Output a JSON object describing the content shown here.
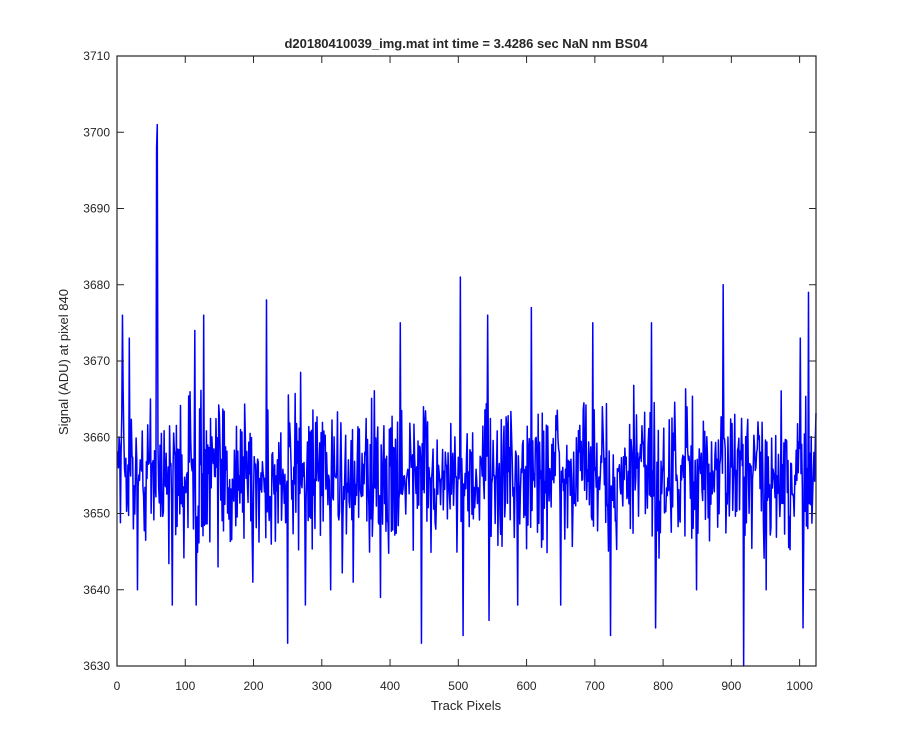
{
  "chart_data": {
    "type": "line",
    "title": "d20180410039_img.mat int time = 3.4286 sec  NaN nm BS04",
    "xlabel": "Track Pixels",
    "ylabel": "Signal (ADU) at pixel 840",
    "xlim": [
      0,
      1024
    ],
    "ylim": [
      3630,
      3710
    ],
    "xticks": [
      0,
      100,
      200,
      300,
      400,
      500,
      600,
      700,
      800,
      900,
      1000
    ],
    "yticks": [
      3630,
      3640,
      3650,
      3660,
      3670,
      3680,
      3690,
      3700,
      3710
    ],
    "grid": false,
    "legend": "none",
    "series": [
      {
        "color": "#0000ff",
        "noise_mean": 3655,
        "noise_range": [
          3633,
          3681
        ],
        "n_points": 1024,
        "peaks": [
          {
            "x": 1,
            "y": 3656
          },
          {
            "x": 7,
            "y": 3676
          },
          {
            "x": 17,
            "y": 3673
          },
          {
            "x": 29,
            "y": 3640
          },
          {
            "x": 57,
            "y": 3698
          },
          {
            "x": 58,
            "y": 3701
          },
          {
            "x": 59,
            "y": 3659
          },
          {
            "x": 80,
            "y": 3638
          },
          {
            "x": 113,
            "y": 3674
          },
          {
            "x": 115,
            "y": 3638
          },
          {
            "x": 126,
            "y": 3676
          },
          {
            "x": 147,
            "y": 3643
          },
          {
            "x": 198,
            "y": 3641
          },
          {
            "x": 218,
            "y": 3678
          },
          {
            "x": 249,
            "y": 3633
          },
          {
            "x": 275,
            "y": 3638
          },
          {
            "x": 312,
            "y": 3640
          },
          {
            "x": 345,
            "y": 3641
          },
          {
            "x": 385,
            "y": 3639
          },
          {
            "x": 414,
            "y": 3675
          },
          {
            "x": 445,
            "y": 3633
          },
          {
            "x": 502,
            "y": 3681
          },
          {
            "x": 506,
            "y": 3634
          },
          {
            "x": 542,
            "y": 3676
          },
          {
            "x": 544,
            "y": 3636
          },
          {
            "x": 586,
            "y": 3638
          },
          {
            "x": 606,
            "y": 3677
          },
          {
            "x": 649,
            "y": 3638
          },
          {
            "x": 696,
            "y": 3675
          },
          {
            "x": 722,
            "y": 3634
          },
          {
            "x": 782,
            "y": 3675
          },
          {
            "x": 788,
            "y": 3635
          },
          {
            "x": 848,
            "y": 3640
          },
          {
            "x": 887,
            "y": 3680
          },
          {
            "x": 917,
            "y": 3630
          },
          {
            "x": 950,
            "y": 3640
          },
          {
            "x": 1000,
            "y": 3673
          },
          {
            "x": 1004,
            "y": 3635
          },
          {
            "x": 1012,
            "y": 3679
          },
          {
            "x": 1020,
            "y": 3658
          }
        ]
      }
    ]
  }
}
